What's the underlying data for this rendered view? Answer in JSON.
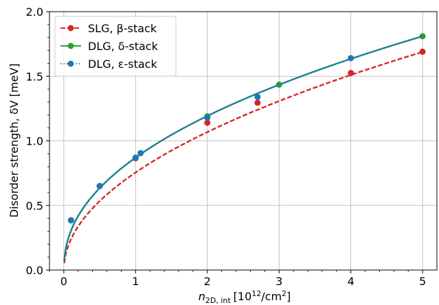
{
  "chart_data": {
    "type": "line",
    "xlabel": "n",
    "xlabel_sub": "2D, int",
    "xlabel_units": "[10",
    "xlabel_exp": "12",
    "xlabel_units_end": "/cm",
    "xlabel_exp2": "2",
    "xlabel_close": "]",
    "ylabel": "Disorder strength, δV [meV]",
    "xlim": [
      -0.2,
      5.2
    ],
    "ylim": [
      0.0,
      2.0
    ],
    "xticks": [
      0,
      1,
      2,
      3,
      4,
      5
    ],
    "yticks": [
      0.0,
      0.5,
      1.0,
      1.5,
      2.0
    ],
    "xtick_labels": [
      "0",
      "1",
      "2",
      "3",
      "4",
      "5"
    ],
    "ytick_labels": [
      "0.0",
      "0.5",
      "1.0",
      "1.5",
      "2.0"
    ],
    "grid": true,
    "legend_position": "top-left",
    "series": [
      {
        "name": "SLG, β-stack",
        "color": "#d62728",
        "linestyle": "dashed",
        "marker_x": [
          0.1,
          0.5,
          1.0,
          2.0,
          2.7,
          4.0,
          5.0
        ],
        "marker_y": [
          0.385,
          0.65,
          0.865,
          1.14,
          1.295,
          1.525,
          1.69
        ],
        "curve_coeff": 0.755,
        "curve_exp": 0.5
      },
      {
        "name": "DLG, δ-stack",
        "color": "#2ca02c",
        "linestyle": "solid",
        "marker_x": [
          0.1,
          0.5,
          1.0,
          2.0,
          3.0,
          5.0
        ],
        "marker_y": [
          0.385,
          0.65,
          0.87,
          1.19,
          1.435,
          1.81
        ],
        "curve_coeff": 0.87,
        "curve_exp": 0.455
      },
      {
        "name": "DLG, ε-stack",
        "color": "#1f77b4",
        "linestyle": "dotted",
        "marker_x": [
          0.1,
          0.5,
          1.0,
          1.07,
          2.0,
          2.7,
          4.0
        ],
        "marker_y": [
          0.385,
          0.65,
          0.87,
          0.905,
          1.18,
          1.34,
          1.64
        ],
        "curve_coeff": 0.87,
        "curve_exp": 0.455
      }
    ]
  }
}
